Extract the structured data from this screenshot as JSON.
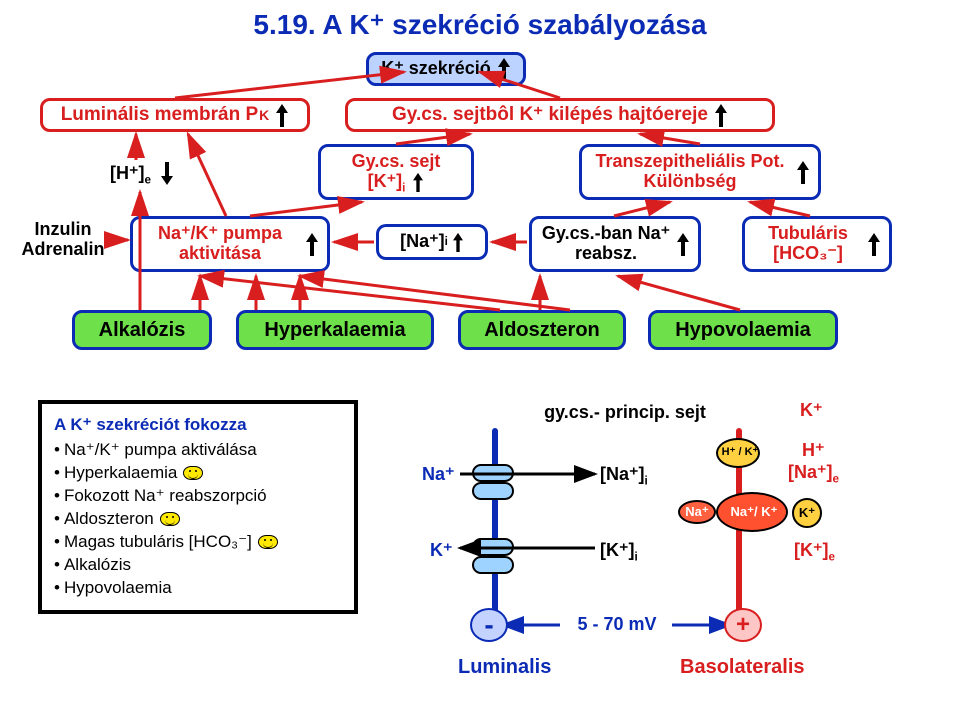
{
  "title": "5.19.  A K⁺ szekréció szabályozása",
  "colors": {
    "title": "#0b2bb5",
    "blue_border": "#0b2bb5",
    "blue_fill": "#bcd3ff",
    "red_border": "#d81e1e",
    "red_fill": "#ffffff",
    "green_fill": "#6de04a",
    "black": "#000000",
    "red_text": "#d81e1e",
    "cell_red": "#d81e1e",
    "cell_blue": "#0b2bb5",
    "minus_bg": "#c3d2ff",
    "plus_bg": "#ffc6c6"
  },
  "row0": {
    "luminalis": "Luminális membrán P",
    "luminalis_sub": "K",
    "szekrecio": "K⁺ szekréció",
    "gy_driving": "Gy.cs. sejtbôl K⁺ kilépés hajtóereje"
  },
  "row1": {
    "he": "[H⁺]",
    "he_sub": "e",
    "gy_sejt": "Gy.cs. sejt",
    "ki": "[K⁺]",
    "ki_sub": "i",
    "transz": "Transzepitheliális Pot. Különbség"
  },
  "row2": {
    "inzulin": "Inzulin Adrenalin",
    "nak_pump": "Na⁺/K⁺ pumpa aktivitása",
    "nai": "[Na⁺]",
    "nai_sub": "i",
    "gycs_ban": "Gy.cs.-ban Na⁺ reabsz.",
    "tubularis": "Tubuláris [HCO₃⁻]"
  },
  "row3": {
    "alkalozis": "Alkalózis",
    "hyperk": "Hyperkalaemia",
    "aldo": "Aldoszteron",
    "hypovol": "Hypovolaemia"
  },
  "card": {
    "title": "A K⁺ szekréciót fokozza",
    "items": [
      "Na⁺/K⁺ pumpa aktiválása",
      "Hyperkalaemia",
      "Fokozott Na⁺ reabszorpció",
      "Aldoszteron",
      "Magas tubuláris [HCO₃⁻]",
      "Alkalózis",
      "Hypovolaemia"
    ],
    "smile_indices": [
      1,
      3,
      4
    ]
  },
  "cell": {
    "header": "gy.cs.- princip. sejt",
    "na": "Na⁺",
    "na_i": "[Na⁺]",
    "k": "K⁺",
    "k_i": "[K⁺]",
    "mv": "5 - 70 mV",
    "minus": "-",
    "plus": "+",
    "lum": "Luminalis",
    "baso": "Basolateralis",
    "right_top_k": "K⁺",
    "hk": "H⁺ / K⁺",
    "h": "H⁺",
    "nae": "[Na⁺]",
    "nae_sub": "e",
    "nak": "Na⁺/ K⁺",
    "kplus_small": "K⁺",
    "ke": "[K⁺]",
    "ke_sub": "e",
    "sub_i": "i"
  }
}
